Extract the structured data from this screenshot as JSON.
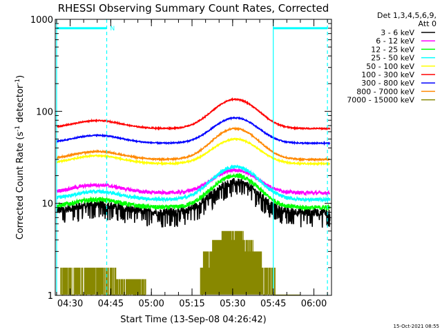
{
  "chart_data": {
    "type": "line",
    "title": "RHESSI Observing Summary Count Rates, Corrected",
    "xlabel": "Start Time (13-Sep-08 04:26:42)",
    "ylabel_main": "Corrected Count Rate (s",
    "ylabel_sup1": "-1",
    "ylabel_mid": " detector",
    "ylabel_sup2": "-1",
    "ylabel_end": ")",
    "yscale": "log",
    "ylim": [
      1,
      1000
    ],
    "xlim_minutes": [
      264.5,
      366.5
    ],
    "x_ticks": [
      "04:30",
      "04:45",
      "05:00",
      "05:15",
      "05:30",
      "05:45",
      "06:00"
    ],
    "x_tick_minutes": [
      270,
      285,
      300,
      315,
      330,
      345,
      360
    ],
    "y_ticks": [
      "1",
      "10",
      "100",
      "1000"
    ],
    "y_tick_values": [
      1,
      10,
      100,
      1000
    ],
    "legend_header": [
      "Det 1,3,4,5,6,9,",
      "Att 0"
    ],
    "legend_position": "right",
    "flags": [
      {
        "label": "N",
        "x_start": 265,
        "x_end": 283.5,
        "value": 800
      },
      {
        "label": "",
        "x_start": 345,
        "x_end": 365,
        "value": 800
      }
    ],
    "vlines_solid": [
      265,
      345
    ],
    "vlines_dashed": [
      283.5,
      365
    ],
    "timestamp": "15-Oct-2021 08:55",
    "series": [
      {
        "name": "3 - 6 keV",
        "color": "#000000",
        "base": 8,
        "peak": 17,
        "noise": 0.35
      },
      {
        "name": "6 - 12 keV",
        "color": "#ff00ff",
        "base": 13,
        "peak": 23,
        "noise": 0.15
      },
      {
        "name": "12 - 25 keV",
        "color": "#00ff00",
        "base": 9,
        "peak": 20,
        "noise": 0.2
      },
      {
        "name": "25 - 50 keV",
        "color": "#00ffff",
        "base": 11,
        "peak": 25,
        "noise": 0.15
      },
      {
        "name": "50 - 100 keV",
        "color": "#ffff00",
        "base": 27,
        "peak": 50,
        "noise": 0.06
      },
      {
        "name": "100 - 300 keV",
        "color": "#ff0000",
        "base": 65,
        "peak": 135,
        "noise": 0.05
      },
      {
        "name": "300 - 800 keV",
        "color": "#0000ff",
        "base": 45,
        "peak": 85,
        "noise": 0.05
      },
      {
        "name": "800 - 7000 keV",
        "color": "#ff8800",
        "base": 30,
        "peak": 65,
        "noise": 0.06
      },
      {
        "name": "7000 - 15000 keV",
        "color": "#888800",
        "base": 1,
        "peak": 5,
        "noise": 0
      }
    ]
  }
}
